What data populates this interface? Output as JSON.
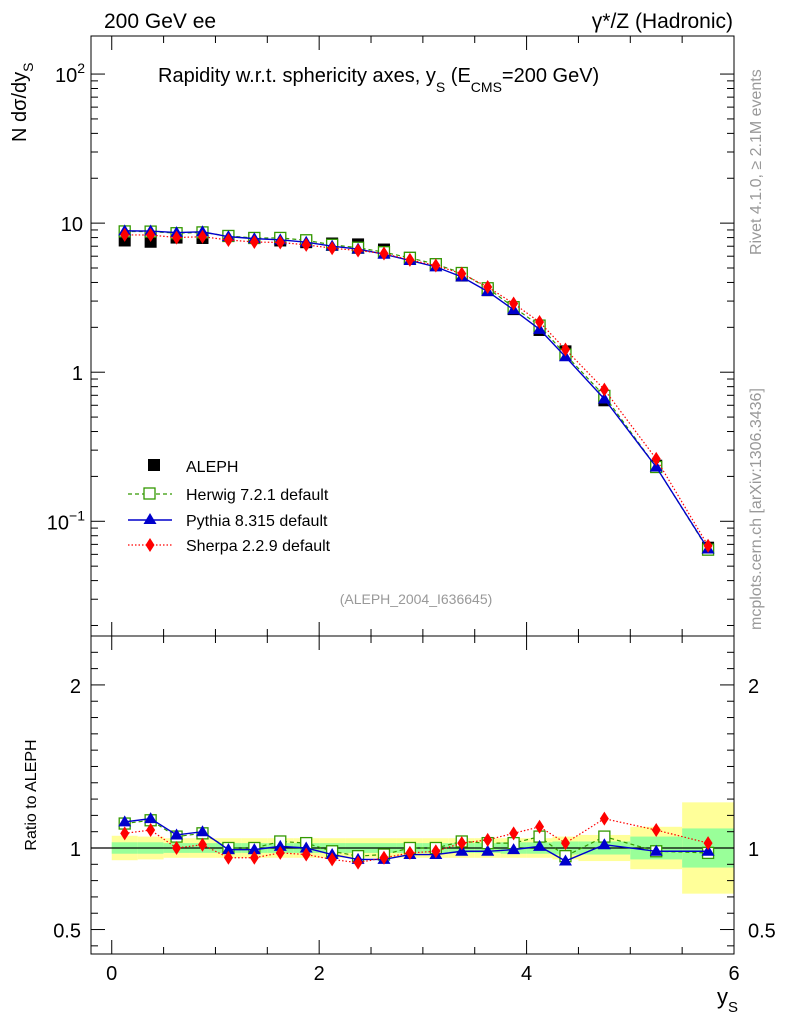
{
  "header": {
    "left": "200 GeV ee",
    "right": "γ*/Z (Hadronic)"
  },
  "side_labels": {
    "rivet": "Rivet 4.1.0, ≥ 2.1M events",
    "mcplots": "mcplots.cern.ch [arXiv:1306.3436]"
  },
  "chart_data": {
    "type": "line",
    "title_main": "Rapidity w.r.t. sphericity axes, y",
    "title_sub": "S",
    "title_open": " (E",
    "title_ecms_sub": "CMS",
    "title_close": "=200 GeV)",
    "ylabel_main": "N  dσ/dy",
    "ylabel_sub": "S",
    "ratio_ylabel": "Ratio to ALEPH",
    "xlabel_main": "y",
    "xlabel_sub": "S",
    "watermark": "(ALEPH_2004_I636645)",
    "x_range": [
      -0.2,
      6.0
    ],
    "y_range_log": [
      0.017,
      180
    ],
    "ratio_range": [
      0.35,
      2.3
    ],
    "main_ytick_labels": [
      "10",
      "10",
      "1",
      "10"
    ],
    "main_ytick_exps": [
      "2",
      "",
      "",
      "−1"
    ],
    "ratio_ytick_labels": [
      "2",
      "1",
      "0.5"
    ],
    "xtick_labels": [
      "0",
      "2",
      "4",
      "6"
    ],
    "x": [
      0.125,
      0.375,
      0.625,
      0.875,
      1.125,
      1.375,
      1.625,
      1.875,
      2.125,
      2.375,
      2.625,
      2.875,
      3.125,
      3.375,
      3.625,
      3.875,
      4.125,
      4.375,
      4.75,
      5.25,
      5.75
    ],
    "bin_edges": [
      0,
      0.25,
      0.5,
      0.75,
      1.0,
      1.25,
      1.5,
      1.75,
      2.0,
      2.25,
      2.5,
      2.75,
      3.0,
      3.25,
      3.5,
      3.75,
      4.0,
      4.25,
      4.5,
      5.0,
      5.5,
      6.0
    ],
    "data": {
      "name": "ALEPH",
      "values": [
        7.65,
        7.5,
        8.0,
        7.95,
        8.2,
        7.95,
        7.65,
        7.45,
        7.3,
        7.2,
        6.65,
        5.85,
        5.3,
        4.45,
        3.55,
        2.65,
        1.92,
        1.38,
        0.648,
        0.236,
        0.0665
      ]
    },
    "uncertainty_bands": {
      "total_err": [
        0.075,
        0.07,
        0.06,
        0.06,
        0.06,
        0.06,
        0.06,
        0.06,
        0.06,
        0.06,
        0.06,
        0.06,
        0.06,
        0.06,
        0.06,
        0.06,
        0.06,
        0.07,
        0.08,
        0.13,
        0.28
      ],
      "stat_err": [
        0.035,
        0.035,
        0.03,
        0.03,
        0.03,
        0.03,
        0.03,
        0.03,
        0.03,
        0.03,
        0.03,
        0.03,
        0.03,
        0.03,
        0.03,
        0.035,
        0.035,
        0.04,
        0.04,
        0.07,
        0.12
      ],
      "total_color": "#ffff99",
      "stat_color": "#99ff99"
    },
    "series": [
      {
        "name": "Herwig 7.2.1 default",
        "color": "#339900",
        "style": "dashed",
        "marker": "open-square",
        "ratio": [
          1.15,
          1.17,
          1.07,
          1.09,
          1.0,
          1.0,
          1.04,
          1.03,
          0.98,
          0.95,
          0.96,
          1.0,
          1.0,
          1.04,
          1.03,
          1.03,
          1.07,
          0.95,
          1.07,
          0.98,
          0.97
        ]
      },
      {
        "name": "Pythia 8.315 default",
        "color": "#0000cc",
        "style": "solid",
        "marker": "filled-triangle",
        "ratio": [
          1.16,
          1.18,
          1.08,
          1.1,
          0.99,
          0.99,
          1.01,
          1.0,
          0.96,
          0.93,
          0.93,
          0.96,
          0.96,
          0.98,
          0.98,
          0.99,
          1.01,
          0.92,
          1.02,
          0.98,
          0.98
        ]
      },
      {
        "name": "Sherpa 2.2.9 default",
        "color": "#ff0000",
        "style": "dotted",
        "marker": "filled-diamond",
        "ratio": [
          1.09,
          1.11,
          1.0,
          1.02,
          0.94,
          0.94,
          0.97,
          0.96,
          0.93,
          0.91,
          0.94,
          0.97,
          0.98,
          1.03,
          1.05,
          1.09,
          1.13,
          1.03,
          1.18,
          1.11,
          1.03
        ]
      }
    ],
    "legend_position": "lower-left"
  }
}
